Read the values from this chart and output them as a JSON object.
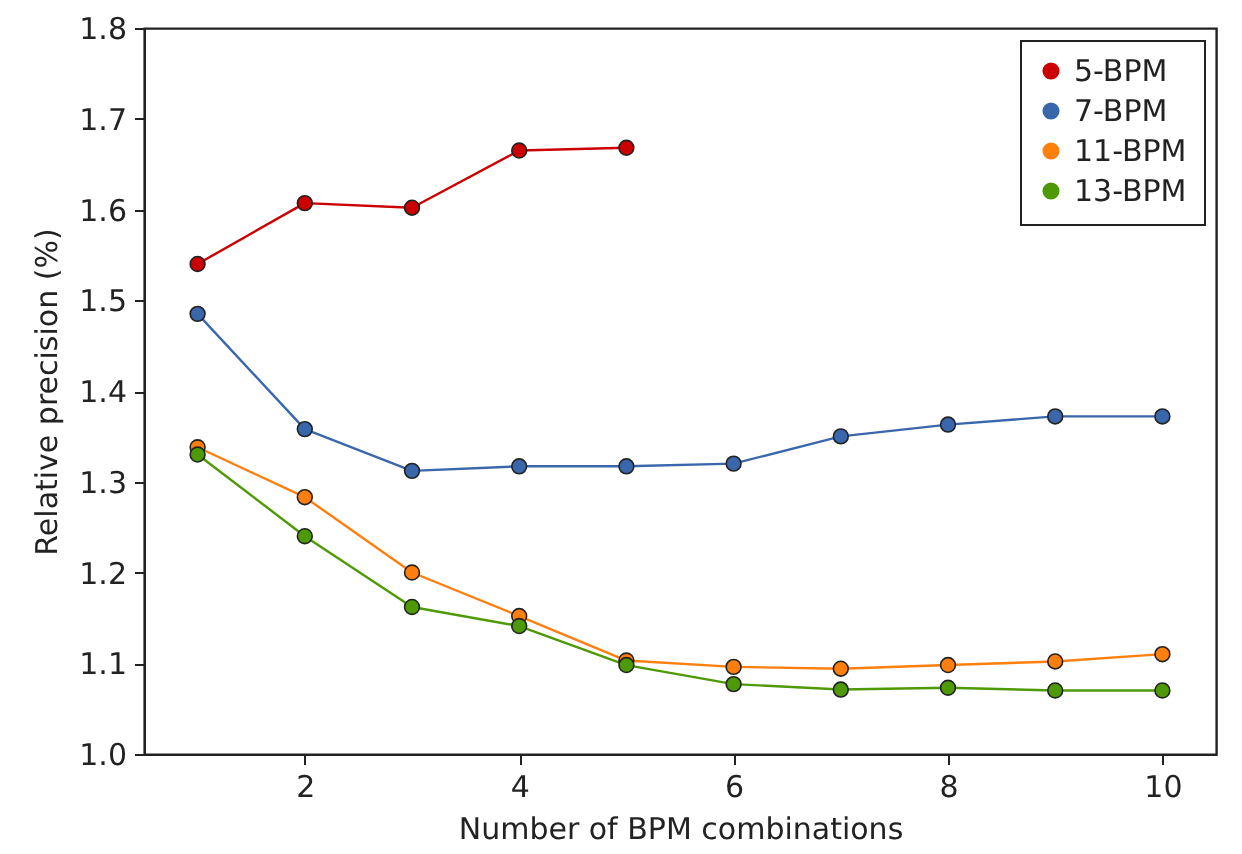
{
  "chart_data": {
    "type": "line",
    "xlabel": "Number of BPM combinations",
    "ylabel": "Relative precision (%)",
    "x": [
      1,
      2,
      3,
      4,
      5,
      6,
      7,
      8,
      9,
      10
    ],
    "series": [
      {
        "name": "5-BPM",
        "color": "#cc0000",
        "values": [
          1.54,
          1.607,
          1.602,
          1.665,
          1.668,
          null,
          null,
          null,
          null,
          null
        ]
      },
      {
        "name": "7-BPM",
        "color": "#3a67ab",
        "values": [
          1.485,
          1.358,
          1.312,
          1.317,
          1.317,
          1.32,
          1.35,
          1.363,
          1.372,
          1.372
        ]
      },
      {
        "name": "11-BPM",
        "color": "#ff7f0e",
        "values": [
          1.338,
          1.283,
          1.2,
          1.152,
          1.103,
          1.096,
          1.094,
          1.098,
          1.102,
          1.11
        ]
      },
      {
        "name": "13-BPM",
        "color": "#4e9a06",
        "values": [
          1.33,
          1.24,
          1.162,
          1.141,
          1.098,
          1.077,
          1.071,
          1.073,
          1.07,
          1.07
        ]
      }
    ],
    "xlim": [
      0.5,
      10.5
    ],
    "xticks": [
      2,
      4,
      6,
      8,
      10
    ],
    "ylim": [
      1.0,
      1.8
    ],
    "yticks": [
      {
        "value": 1,
        "label": "1.0"
      },
      1.1,
      1.2,
      1.3,
      1.4,
      1.5,
      1.6,
      1.7,
      1.8
    ],
    "grid": false,
    "legend": "top right",
    "marker": "circle",
    "line_style": "solid"
  }
}
